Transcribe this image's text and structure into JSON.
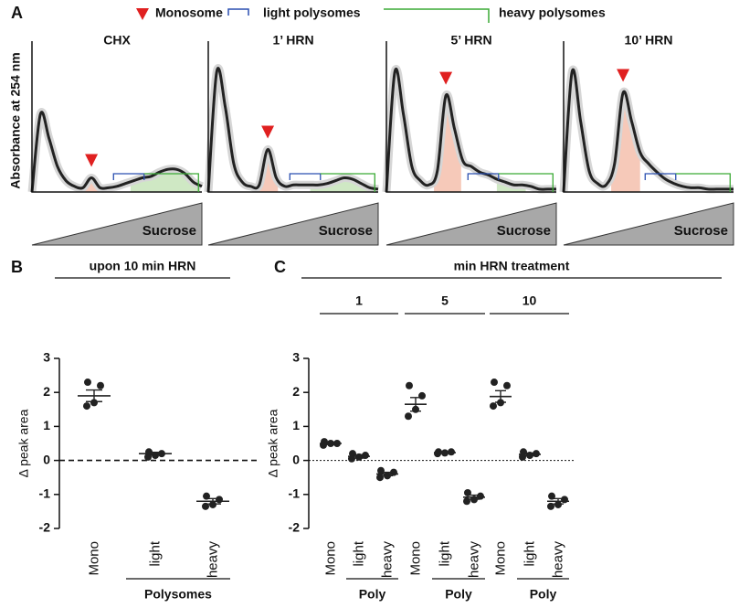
{
  "figure": {
    "panel_labels": [
      "A",
      "B",
      "C"
    ],
    "legend": [
      {
        "name": "Monosome",
        "color": "#e02020"
      },
      {
        "name": "light polysomes",
        "color": "#2a4fb0"
      },
      {
        "name": "heavy polysomes",
        "color": "#3aaa35"
      }
    ]
  },
  "chart_data": [
    {
      "type": "profile",
      "title": "CHX",
      "ylabel": "Absorbance at 254 nm",
      "gradient_label": "Sucrose",
      "ylim": [
        0,
        1
      ],
      "color": "#222222",
      "values": [
        0,
        0.55,
        0.38,
        0.18,
        0.08,
        0.04,
        0.03,
        0.1,
        0.03,
        0.03,
        0.04,
        0.06,
        0.08,
        0.1,
        0.11,
        0.14,
        0.16,
        0.16,
        0.13,
        0.07,
        0.04
      ]
    },
    {
      "type": "profile",
      "title": "1’ HRN",
      "gradient_label": "Sucrose",
      "ylim": [
        0,
        1
      ],
      "color": "#222222",
      "values": [
        0,
        0.85,
        0.6,
        0.2,
        0.07,
        0.04,
        0.05,
        0.3,
        0.1,
        0.04,
        0.05,
        0.05,
        0.05,
        0.05,
        0.06,
        0.08,
        0.1,
        0.09,
        0.06,
        0.03,
        0.02
      ]
    },
    {
      "type": "profile",
      "title": "5’ HRN",
      "gradient_label": "Sucrose",
      "ylim": [
        0,
        1
      ],
      "color": "#222222",
      "values": [
        0,
        0.85,
        0.55,
        0.18,
        0.08,
        0.05,
        0.15,
        0.68,
        0.45,
        0.22,
        0.18,
        0.14,
        0.12,
        0.09,
        0.07,
        0.05,
        0.05,
        0.04,
        0.02,
        0.02,
        0.02
      ]
    },
    {
      "type": "profile",
      "title": "10’ HRN",
      "gradient_label": "Sucrose",
      "ylim": [
        0,
        1
      ],
      "color": "#222222",
      "values": [
        0,
        0.85,
        0.5,
        0.15,
        0.06,
        0.05,
        0.2,
        0.7,
        0.5,
        0.28,
        0.2,
        0.14,
        0.09,
        0.06,
        0.04,
        0.03,
        0.03,
        0.02,
        0.02,
        0.02,
        0.02
      ]
    },
    {
      "type": "dotplot",
      "title": "upon 10 min HRN",
      "ylabel": "Δ peak area",
      "ylim": [
        -2,
        3
      ],
      "yticks": [
        -2,
        -1,
        0,
        1,
        2,
        3
      ],
      "categories": [
        "Mono",
        "light",
        "heavy"
      ],
      "sublabel": "Polysomes",
      "color": "#222222",
      "points": [
        [
          2.3,
          2.2,
          1.7,
          1.6
        ],
        [
          0.25,
          0.2,
          0.15,
          0.1
        ],
        [
          -1.05,
          -1.15,
          -1.3,
          -1.35
        ]
      ],
      "mean": [
        1.9,
        0.2,
        -1.2
      ],
      "sem": [
        0.17,
        0.04,
        0.08
      ]
    },
    {
      "type": "dotplot",
      "title": "min HRN treatment",
      "ylabel": "Δ peak area",
      "ylim": [
        -2,
        3
      ],
      "yticks": [
        -2,
        -1,
        0,
        1,
        2,
        3
      ],
      "groups": [
        "1",
        "5",
        "10"
      ],
      "categories": [
        "Mono",
        "light",
        "heavy",
        "Mono",
        "light",
        "heavy",
        "Mono",
        "light",
        "heavy"
      ],
      "sublabel": "Poly",
      "color": "#222222",
      "points": [
        [
          0.55,
          0.5,
          0.5,
          0.45
        ],
        [
          0.2,
          0.15,
          0.1,
          0.05
        ],
        [
          -0.3,
          -0.35,
          -0.45,
          -0.5
        ],
        [
          2.2,
          1.9,
          1.5,
          1.3
        ],
        [
          0.25,
          0.25,
          0.22,
          0.2
        ],
        [
          -0.95,
          -1.05,
          -1.15,
          -1.2
        ],
        [
          2.3,
          2.2,
          1.7,
          1.6
        ],
        [
          0.25,
          0.2,
          0.15,
          0.1
        ],
        [
          -1.05,
          -1.15,
          -1.3,
          -1.35
        ]
      ],
      "mean": [
        0.5,
        0.12,
        -0.4,
        1.65,
        0.23,
        -1.08,
        1.88,
        0.18,
        -1.2
      ],
      "sem": [
        0.03,
        0.05,
        0.05,
        0.2,
        0.02,
        0.06,
        0.17,
        0.04,
        0.08
      ]
    }
  ]
}
